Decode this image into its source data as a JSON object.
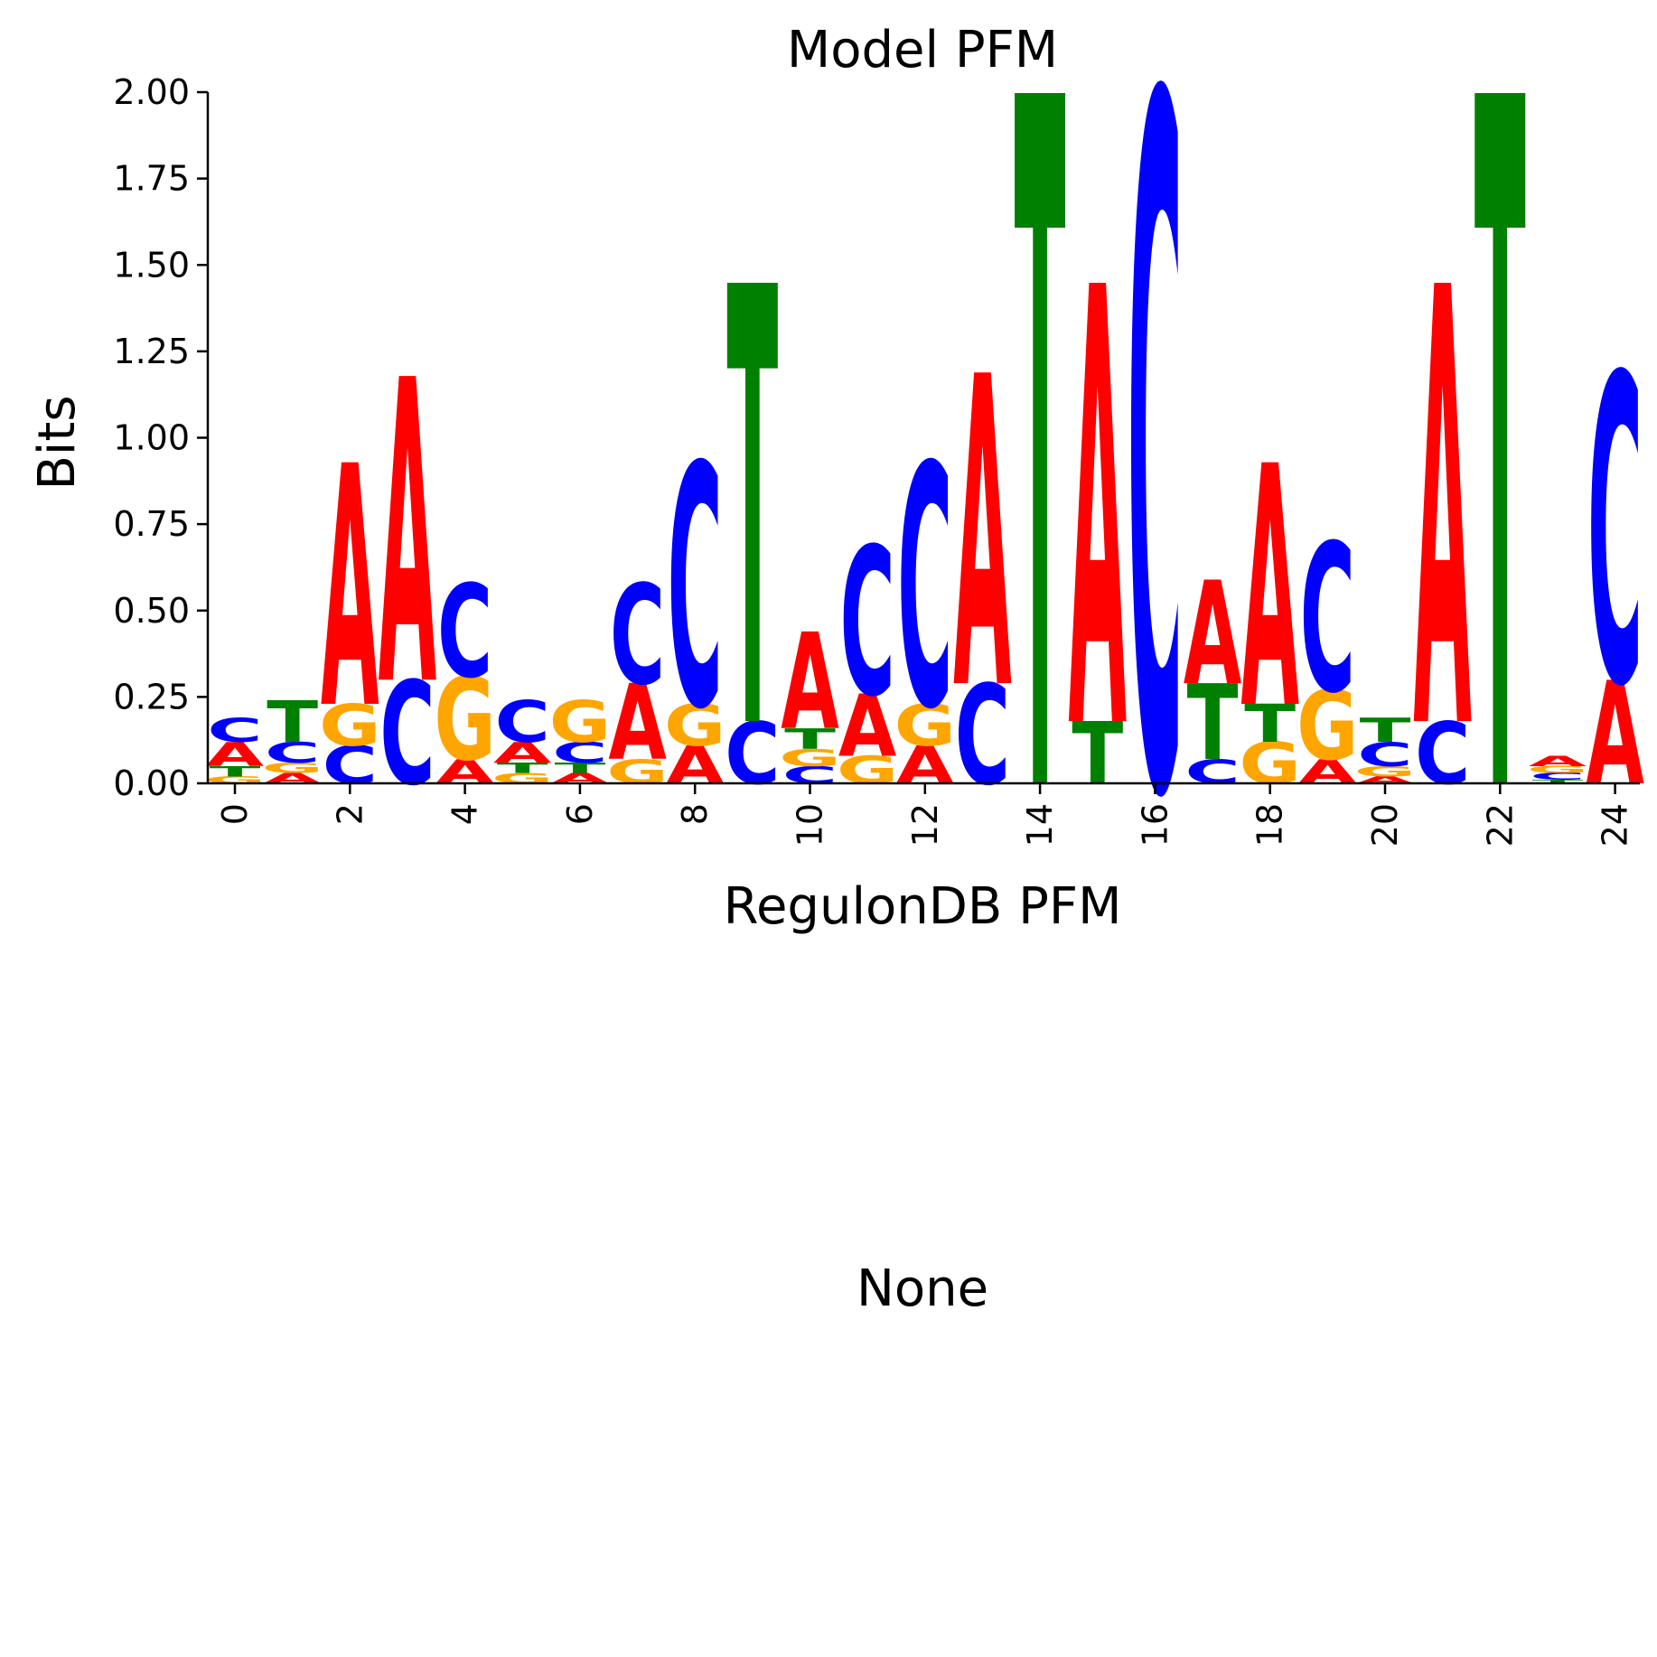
{
  "chart_data": {
    "type": "sequence-logo",
    "title": "Model PFM",
    "xlabel": "RegulonDB PFM",
    "ylabel": "Bits",
    "ylim": [
      0,
      2
    ],
    "yticks": [
      "0.00",
      "0.25",
      "0.50",
      "0.75",
      "1.00",
      "1.25",
      "1.50",
      "1.75",
      "2.00"
    ],
    "xticks": [
      "0",
      "2",
      "4",
      "6",
      "8",
      "10",
      "12",
      "14",
      "16",
      "18",
      "20",
      "22",
      "24"
    ],
    "colors": {
      "A": "#ff0000",
      "C": "#0000ff",
      "G": "#ffa500",
      "T": "#008000"
    },
    "positions": [
      [
        [
          "G",
          0.02
        ],
        [
          "T",
          0.03
        ],
        [
          "A",
          0.07
        ],
        [
          "C",
          0.07
        ]
      ],
      [
        [
          "A",
          0.03
        ],
        [
          "G",
          0.03
        ],
        [
          "C",
          0.06
        ],
        [
          "T",
          0.12
        ]
      ],
      [
        [
          "C",
          0.11
        ],
        [
          "G",
          0.12
        ],
        [
          "A",
          0.7
        ]
      ],
      [
        [
          "C",
          0.3
        ],
        [
          "A",
          0.88
        ]
      ],
      [
        [
          "A",
          0.07
        ],
        [
          "G",
          0.24
        ],
        [
          "C",
          0.27
        ]
      ],
      [
        [
          "G",
          0.03
        ],
        [
          "T",
          0.03
        ],
        [
          "A",
          0.06
        ],
        [
          "C",
          0.12
        ]
      ],
      [
        [
          "A",
          0.03
        ],
        [
          "T",
          0.03
        ],
        [
          "C",
          0.06
        ],
        [
          "G",
          0.12
        ]
      ],
      [
        [
          "G",
          0.07
        ],
        [
          "A",
          0.22
        ],
        [
          "C",
          0.29
        ]
      ],
      [
        [
          "A",
          0.11
        ],
        [
          "G",
          0.12
        ],
        [
          "C",
          0.7
        ]
      ],
      [
        [
          "C",
          0.18
        ],
        [
          "T",
          1.27
        ]
      ],
      [
        [
          "C",
          0.05
        ],
        [
          "G",
          0.05
        ],
        [
          "T",
          0.06
        ],
        [
          "A",
          0.28
        ]
      ],
      [
        [
          "G",
          0.08
        ],
        [
          "A",
          0.18
        ],
        [
          "C",
          0.43
        ]
      ],
      [
        [
          "A",
          0.11
        ],
        [
          "G",
          0.12
        ],
        [
          "C",
          0.7
        ]
      ],
      [
        [
          "C",
          0.29
        ],
        [
          "A",
          0.9
        ]
      ],
      [
        [
          "T",
          2.0
        ]
      ],
      [
        [
          "T",
          0.18
        ],
        [
          "A",
          1.27
        ]
      ],
      [
        [
          "C",
          2.0
        ]
      ],
      [
        [
          "C",
          0.07
        ],
        [
          "T",
          0.22
        ],
        [
          "A",
          0.3
        ]
      ],
      [
        [
          "G",
          0.12
        ],
        [
          "T",
          0.11
        ],
        [
          "A",
          0.7
        ]
      ],
      [
        [
          "A",
          0.07
        ],
        [
          "G",
          0.2
        ],
        [
          "C",
          0.43
        ]
      ],
      [
        [
          "A",
          0.02
        ],
        [
          "G",
          0.03
        ],
        [
          "C",
          0.07
        ],
        [
          "T",
          0.07
        ]
      ],
      [
        [
          "C",
          0.18
        ],
        [
          "A",
          1.27
        ]
      ],
      [
        [
          "T",
          2.0
        ]
      ],
      [
        [
          "T",
          0.01
        ],
        [
          "C",
          0.02
        ],
        [
          "G",
          0.02
        ],
        [
          "A",
          0.03
        ]
      ],
      [
        [
          "A",
          0.3
        ],
        [
          "C",
          0.89
        ]
      ]
    ],
    "grid": false,
    "legend": "none"
  },
  "panel2": {
    "label": "None"
  }
}
